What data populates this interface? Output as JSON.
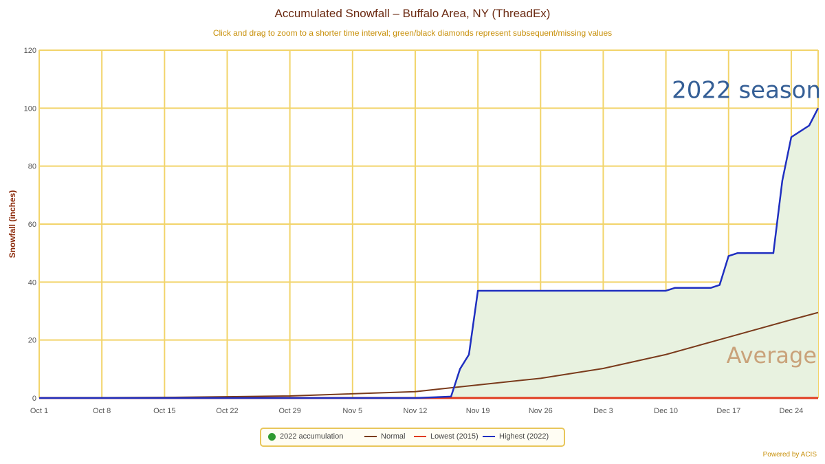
{
  "colors": {
    "grid": "#f2d46a",
    "axis_text": "#555555",
    "ylabel": "#8b2a0a",
    "normal": "#7a3b1c",
    "lowest": "#e03a1e",
    "highest": "#1f2fc0",
    "fill": "#e8f2e0",
    "accumulation": "#2f9a2f",
    "annot_season": "#355f96",
    "annot_average": "#c9a27a"
  },
  "chart_data": {
    "type": "line",
    "title": "Accumulated Snowfall – Buffalo Area, NY (ThreadEx)",
    "subtitle": "Click and drag to zoom to a shorter time interval; green/black diamonds represent subsequent/missing values",
    "ylabel": "Snowfall (inches)",
    "xlabel": "",
    "ylim": [
      0,
      120
    ],
    "yticks": [
      0,
      20,
      40,
      60,
      80,
      100,
      120
    ],
    "xlim": [
      "Oct 1",
      "Dec 27"
    ],
    "xticks": [
      "Oct 1",
      "Oct 8",
      "Oct 15",
      "Oct 22",
      "Oct 29",
      "Nov 5",
      "Nov 12",
      "Nov 19",
      "Nov 26",
      "Dec 3",
      "Dec 10",
      "Dec 17",
      "Dec 24"
    ],
    "grid": true,
    "legend_position": "bottom-center",
    "series": [
      {
        "name": "2022 accumulation",
        "style": "filled-area",
        "x": [
          "Oct 1",
          "Nov 12",
          "Nov 16",
          "Nov 17",
          "Nov 18",
          "Nov 19",
          "Dec 10",
          "Dec 11",
          "Dec 15",
          "Dec 16",
          "Dec 17",
          "Dec 18",
          "Dec 22",
          "Dec 23",
          "Dec 24",
          "Dec 25",
          "Dec 26",
          "Dec 27"
        ],
        "y": [
          0,
          0,
          0.5,
          10,
          15,
          37,
          37,
          38,
          38,
          39,
          49,
          50,
          50,
          75,
          90,
          92,
          94,
          100
        ]
      },
      {
        "name": "Normal",
        "style": "line",
        "x": [
          "Oct 1",
          "Oct 15",
          "Oct 29",
          "Nov 12",
          "Nov 19",
          "Nov 26",
          "Dec 3",
          "Dec 10",
          "Dec 17",
          "Dec 24",
          "Dec 27"
        ],
        "y": [
          0,
          0.2,
          0.7,
          2.2,
          4.5,
          6.8,
          10.2,
          15.0,
          21.0,
          27.0,
          29.5
        ]
      },
      {
        "name": "Lowest (2015)",
        "style": "line",
        "x": [
          "Oct 1",
          "Dec 27"
        ],
        "y": [
          0,
          0
        ]
      },
      {
        "name": "Highest (2022)",
        "style": "line",
        "x": [
          "Oct 1",
          "Nov 12",
          "Nov 16",
          "Nov 17",
          "Nov 18",
          "Nov 19",
          "Dec 10",
          "Dec 11",
          "Dec 15",
          "Dec 16",
          "Dec 17",
          "Dec 18",
          "Dec 22",
          "Dec 23",
          "Dec 24",
          "Dec 25",
          "Dec 26",
          "Dec 27"
        ],
        "y": [
          0,
          0,
          0.5,
          10,
          15,
          37,
          37,
          38,
          38,
          39,
          49,
          50,
          50,
          75,
          90,
          92,
          94,
          100
        ]
      }
    ],
    "annotations": [
      {
        "text": "2022 season",
        "x": "Dec 27",
        "y": 105
      },
      {
        "text": "Average",
        "x": "Dec 27",
        "y": 15
      }
    ]
  },
  "legend": {
    "items": [
      {
        "label": "2022 accumulation"
      },
      {
        "label": "Normal"
      },
      {
        "label": "Lowest (2015)"
      },
      {
        "label": "Highest (2022)"
      }
    ]
  },
  "footer": {
    "credit": "Powered by ACIS"
  }
}
